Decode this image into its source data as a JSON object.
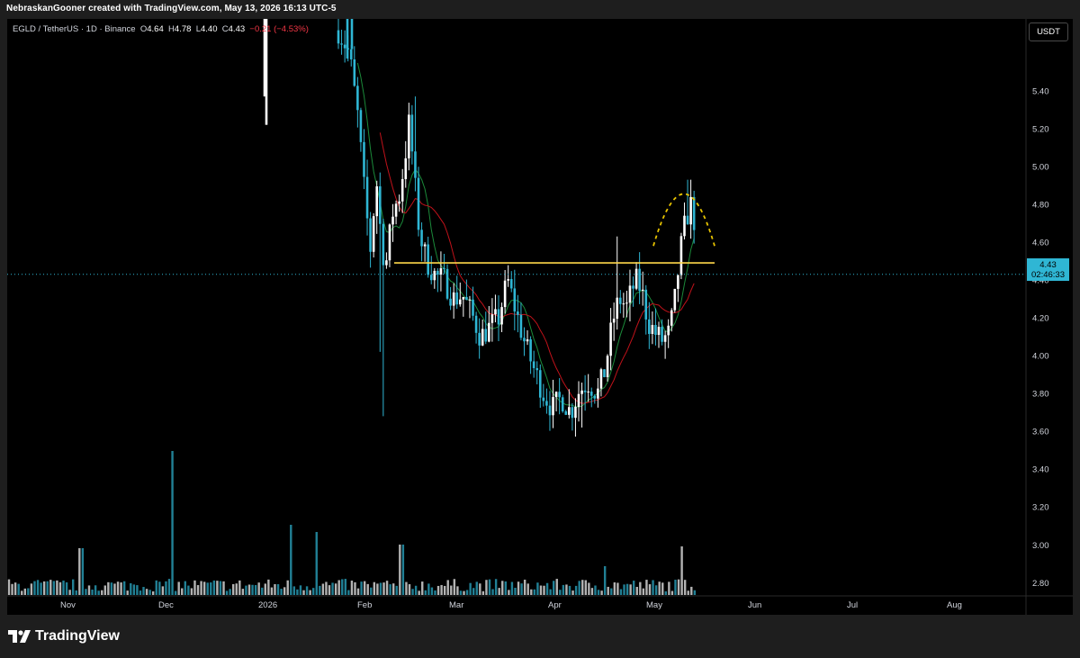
{
  "header": {
    "caption": "NebraskanGooner created with TradingView.com, May 13, 2026 16:13 UTC-5"
  },
  "legend": {
    "symbol": "EGLD / TetherUS · 1D · Binance",
    "open_label": "O",
    "open": "4.64",
    "high_label": "H",
    "high": "4.78",
    "low_label": "L",
    "low": "4.40",
    "close_label": "C",
    "close": "4.43",
    "change": "−0.21 (−4.53%)"
  },
  "price_scale": {
    "currency": "USDT",
    "last_price": "4.43",
    "countdown": "02:46:33"
  },
  "brand": {
    "name": "TradingView"
  },
  "colors": {
    "candle_up": "#ffffff",
    "candle_down": "#2fb6d4",
    "ma_fast": "#1b8a3a",
    "ma_slow": "#c0121a",
    "resistance": "#ffd84a",
    "arc": "#e6c200",
    "price_line": "#2fb6d4",
    "volume": "#8ea2ad"
  },
  "chart_data": {
    "type": "candlestick",
    "symbol": "EGLD / TetherUS",
    "timeframe": "1D",
    "exchange": "Binance",
    "x_tick_labels": [
      "Nov",
      "Dec",
      "2026",
      "Feb",
      "Mar",
      "Apr",
      "May",
      "Jun",
      "Jul",
      "Aug"
    ],
    "y_tick_labels": [
      "5.40",
      "5.20",
      "5.00",
      "4.80",
      "4.60",
      "4.40",
      "4.20",
      "4.00",
      "3.80",
      "3.60",
      "3.40",
      "3.20",
      "3.00",
      "2.80"
    ],
    "ylim": [
      2.73,
      5.78
    ],
    "last_price": 4.43,
    "resistance_level": 4.49,
    "annotations": [
      {
        "type": "horizontal-line",
        "level": 4.49,
        "from": "2026-02-10",
        "to": "2026-05-16"
      },
      {
        "type": "dotted-arc",
        "from": "2026-05-03",
        "peak": "2026-05-11",
        "to": "2026-05-19",
        "low_value": 4.58,
        "peak_value": 4.95
      }
    ],
    "moving_averages": [
      "fast",
      "slow"
    ],
    "ohlc_segments": [
      {
        "period": "late Jan 2026",
        "high": 5.78,
        "low": 5.3
      },
      {
        "period": "Feb 2026",
        "high": 5.37,
        "low": 3.68
      },
      {
        "period": "Mar 2026",
        "high": 4.48,
        "low": 4.0
      },
      {
        "period": "Apr 2026",
        "high": 4.63,
        "low": 3.62
      },
      {
        "period": "May 2026",
        "high": 4.93,
        "low": 4.02
      }
    ]
  }
}
